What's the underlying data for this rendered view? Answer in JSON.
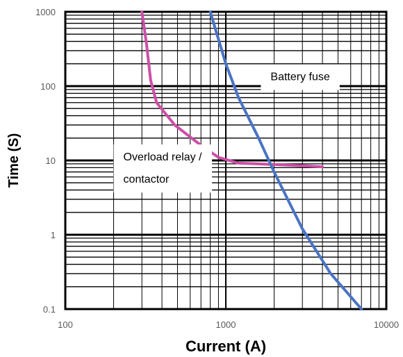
{
  "chart_data": {
    "type": "line",
    "xlabel": "Current (A)",
    "ylabel": "Time (S)",
    "x_scale": "log",
    "y_scale": "log",
    "xlim": [
      100,
      10000
    ],
    "ylim": [
      0.1,
      1000
    ],
    "x_ticks": [
      "100",
      "1000",
      "10000"
    ],
    "y_ticks": [
      "0.1",
      "1",
      "10",
      "100",
      "1000"
    ],
    "grid": "on",
    "series": [
      {
        "name": "Overload relay / contactor",
        "color": "#cc4fa6",
        "points": [
          [
            300,
            1000
          ],
          [
            320,
            380
          ],
          [
            340,
            120
          ],
          [
            370,
            60
          ],
          [
            480,
            30
          ],
          [
            700,
            16
          ],
          [
            900,
            11
          ],
          [
            1200,
            9.2
          ],
          [
            2000,
            8.8
          ],
          [
            3000,
            8.5
          ],
          [
            4000,
            8.2
          ]
        ]
      },
      {
        "name": "Battery fuse",
        "color": "#4a74c4",
        "points": [
          [
            800,
            1000
          ],
          [
            1000,
            200
          ],
          [
            1200,
            70
          ],
          [
            1600,
            20
          ],
          [
            2000,
            7
          ],
          [
            3000,
            1.2
          ],
          [
            4500,
            0.3
          ],
          [
            7000,
            0.1
          ]
        ]
      }
    ],
    "annotations": [
      {
        "text": "Battery fuse",
        "x": 1900,
        "y": 120
      },
      {
        "text": "Overload relay /",
        "x": 230,
        "y": 10
      },
      {
        "text": "contactor",
        "x": 230,
        "y": 5
      }
    ]
  }
}
